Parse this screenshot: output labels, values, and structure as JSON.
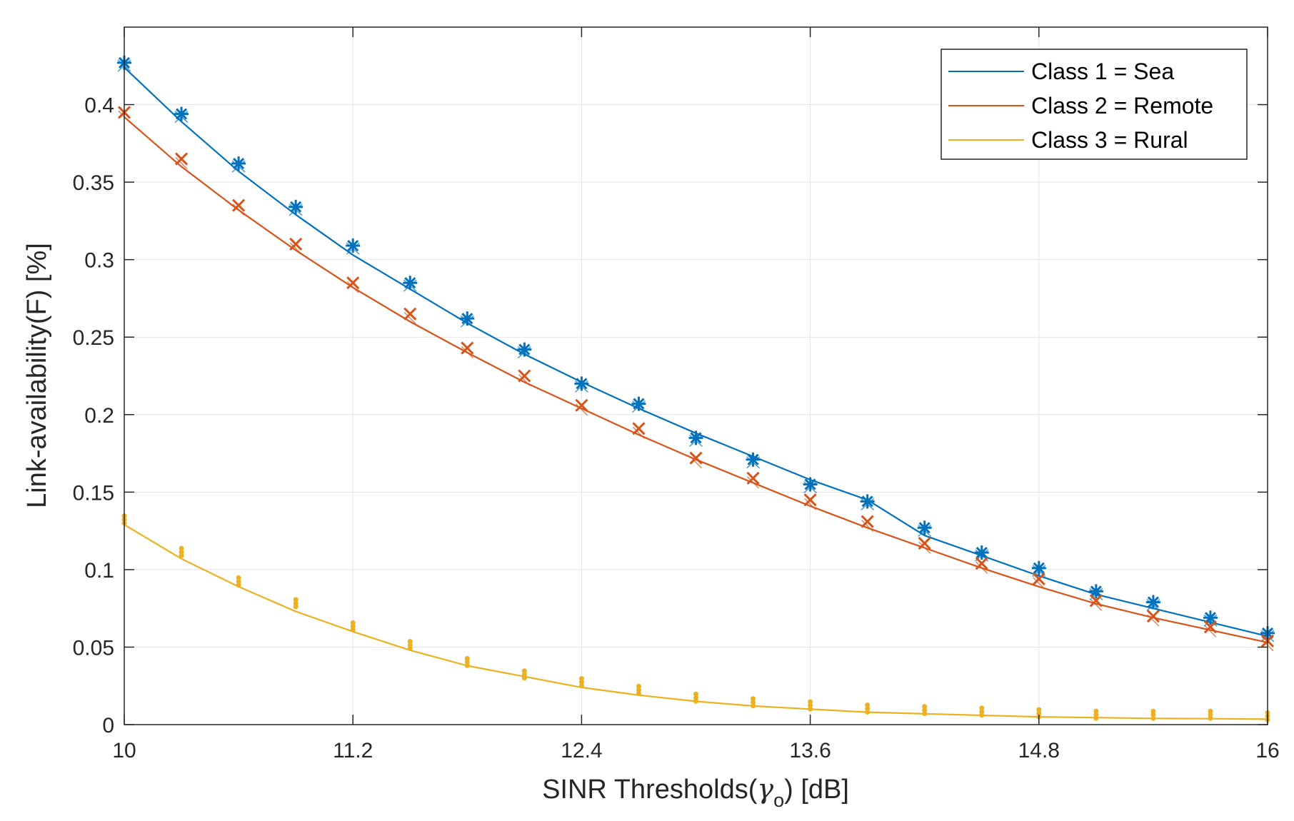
{
  "chart_data": {
    "type": "line",
    "title": "",
    "xlabel": "SINR Thresholds(γo) [dB]",
    "xlabel_parts": {
      "prefix": "SINR Thresholds(",
      "greek": "γ",
      "sub": "o",
      "suffix": ") [dB]"
    },
    "ylabel": "Link-availability(F) [%]",
    "xlim": [
      10,
      16
    ],
    "ylim": [
      0,
      0.45
    ],
    "xticks": [
      10,
      11.2,
      12.4,
      13.6,
      14.8,
      16
    ],
    "xtick_labels": [
      "10",
      "11.2",
      "12.4",
      "13.6",
      "14.8",
      "16"
    ],
    "yticks": [
      0,
      0.05,
      0.1,
      0.15,
      0.2,
      0.25,
      0.3,
      0.35,
      0.4
    ],
    "ytick_labels": [
      "0",
      "0.05",
      "0.1",
      "0.15",
      "0.2",
      "0.25",
      "0.3",
      "0.35",
      "0.4"
    ],
    "grid": true,
    "legend_position": "top-right",
    "x": [
      10,
      10.3,
      10.6,
      10.9,
      11.2,
      11.5,
      11.8,
      12.1,
      12.4,
      12.7,
      13.0,
      13.3,
      13.6,
      13.9,
      14.2,
      14.5,
      14.8,
      15.1,
      15.4,
      15.7,
      16
    ],
    "series": [
      {
        "name": "Class 1 = Sea",
        "label": "Class 1 = Sea",
        "color": "#0072BD",
        "marker": "asterisk",
        "values": [
          0.424,
          0.389,
          0.357,
          0.329,
          0.303,
          0.281,
          0.259,
          0.239,
          0.221,
          0.204,
          0.188,
          0.173,
          0.158,
          0.145,
          0.122,
          0.109,
          0.096,
          0.084,
          0.075,
          0.066,
          0.057
        ],
        "markers": [
          0.427,
          0.394,
          0.362,
          0.334,
          0.309,
          0.285,
          0.262,
          0.242,
          0.22,
          0.207,
          0.185,
          0.171,
          0.155,
          0.144,
          0.127,
          0.111,
          0.101,
          0.086,
          0.079,
          0.069,
          0.059
        ]
      },
      {
        "name": "Class 2 = Remote",
        "label": "Class 2 = Remote",
        "color": "#D95319",
        "marker": "x",
        "values": [
          0.392,
          0.36,
          0.332,
          0.306,
          0.282,
          0.26,
          0.24,
          0.221,
          0.204,
          0.187,
          0.171,
          0.156,
          0.141,
          0.127,
          0.114,
          0.101,
          0.089,
          0.078,
          0.069,
          0.061,
          0.053
        ],
        "markers": [
          0.395,
          0.365,
          0.335,
          0.31,
          0.285,
          0.265,
          0.243,
          0.225,
          0.206,
          0.191,
          0.172,
          0.159,
          0.145,
          0.131,
          0.117,
          0.104,
          0.094,
          0.08,
          0.07,
          0.063,
          0.054
        ]
      },
      {
        "name": "Class 3 = Rural",
        "label": "Class 3 = Rural",
        "color": "#EDB120",
        "marker": "dot",
        "values": [
          0.129,
          0.107,
          0.089,
          0.073,
          0.06,
          0.048,
          0.038,
          0.031,
          0.024,
          0.019,
          0.015,
          0.012,
          0.01,
          0.008,
          0.007,
          0.006,
          0.005,
          0.0045,
          0.004,
          0.0038,
          0.0035
        ],
        "markers": [
          0.131,
          0.11,
          0.091,
          0.077,
          0.062,
          0.05,
          0.039,
          0.031,
          0.026,
          0.021,
          0.016,
          0.013,
          0.011,
          0.009,
          0.008,
          0.007,
          0.006,
          0.005,
          0.005,
          0.005,
          0.004
        ]
      }
    ]
  }
}
